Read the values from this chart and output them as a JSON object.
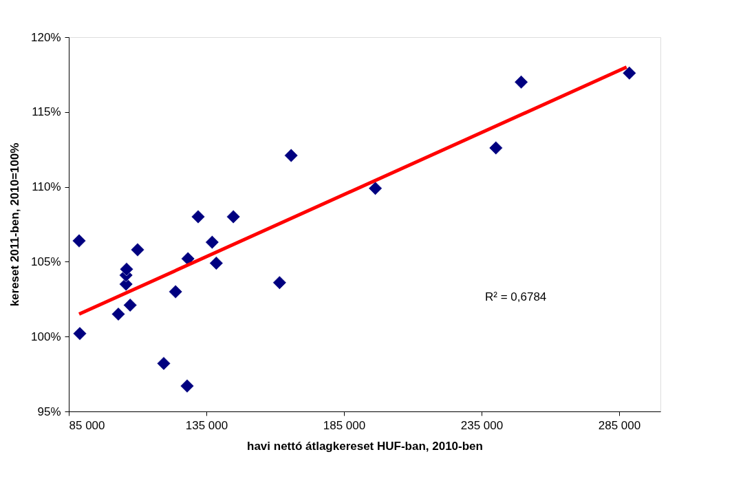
{
  "chart_data": {
    "type": "scatter",
    "xlabel": "havi nettó átlagkereset HUF-ban, 2010-ben",
    "ylabel": "kereset 2011-ben, 2010=100%",
    "xlim": [
      85000,
      300000
    ],
    "xticks": [
      {
        "value": 85000,
        "label": "85 000"
      },
      {
        "value": 135000,
        "label": "135 000"
      },
      {
        "value": 185000,
        "label": "185 000"
      },
      {
        "value": 235000,
        "label": "235 000"
      },
      {
        "value": 285000,
        "label": "285 000"
      }
    ],
    "ylim": [
      95,
      120
    ],
    "yticks": [
      {
        "value": 95,
        "label": "95%"
      },
      {
        "value": 100,
        "label": "100%"
      },
      {
        "value": 105,
        "label": "105%"
      },
      {
        "value": 110,
        "label": "110%"
      },
      {
        "value": 115,
        "label": "115%"
      },
      {
        "value": 120,
        "label": "120%"
      }
    ],
    "grid": false,
    "series": [
      {
        "marker": "diamond",
        "color": "#000080",
        "x": [
          88750,
          89000,
          103000,
          107300,
          105800,
          105800,
          106000,
          110000,
          119500,
          123800,
          128300,
          128000,
          132000,
          137100,
          138600,
          144800,
          161600,
          165800,
          196400,
          240200,
          249400,
          288700
        ],
        "values": [
          106.4,
          100.2,
          101.5,
          102.1,
          103.5,
          104.1,
          104.5,
          105.8,
          98.2,
          103.0,
          105.2,
          96.7,
          108.0,
          106.3,
          104.9,
          108.0,
          103.6,
          112.1,
          109.9,
          112.6,
          117.0,
          117.6
        ]
      },
      {
        "type": "line",
        "line_style": "solid",
        "color": "#ff0000",
        "x": [
          88750,
          287700
        ],
        "values": [
          101.5,
          118.0
        ]
      }
    ],
    "annotations": [
      "R² = 0,6784"
    ]
  }
}
